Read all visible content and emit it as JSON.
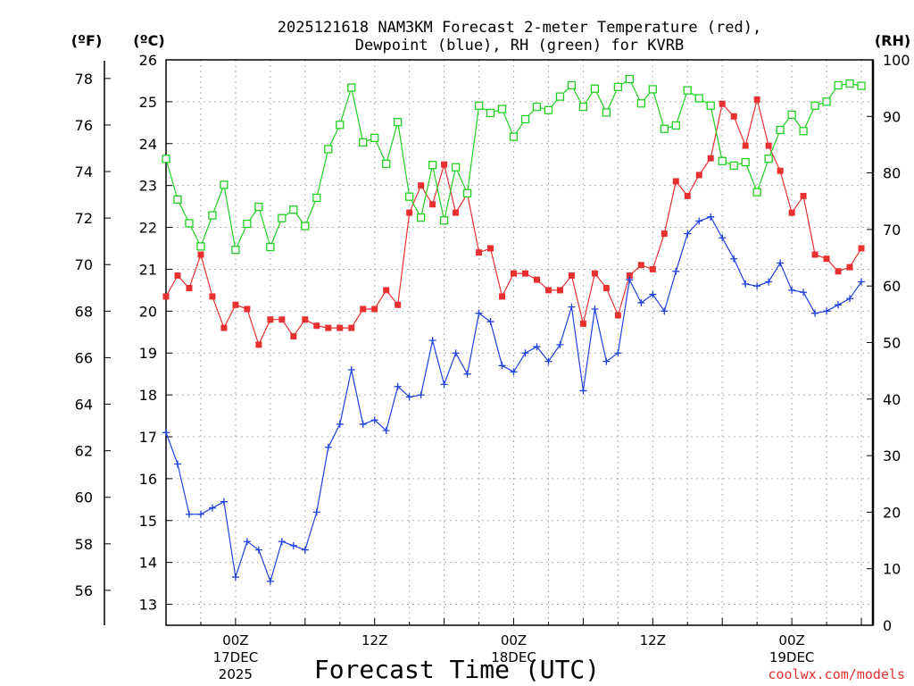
{
  "chart_data": {
    "type": "line",
    "title_line1": "2025121618 NAM3KM Forecast 2-meter Temperature (red),",
    "title_line2": "Dewpoint (blue), RH (green) for KVRB",
    "units": {
      "fahrenheit": "(ºF)",
      "celsius": "(ºC)",
      "rh": "(RH)"
    },
    "xlabel": "Forecast Time (UTC)",
    "credit": "coolwx.com/models",
    "x_hours_range": [
      0,
      61
    ],
    "celsius_axis": {
      "ylim": [
        12.5,
        26
      ],
      "ticks": [
        "13",
        "14",
        "15",
        "16",
        "17",
        "18",
        "19",
        "20",
        "21",
        "22",
        "23",
        "24",
        "25",
        "26"
      ]
    },
    "fahrenheit_axis": {
      "ticks": [
        "56",
        "58",
        "60",
        "62",
        "64",
        "66",
        "68",
        "70",
        "72",
        "74",
        "76",
        "78"
      ]
    },
    "rh_axis": {
      "ylim": [
        0,
        100
      ],
      "ticks": [
        "0",
        "10",
        "20",
        "30",
        "40",
        "50",
        "60",
        "70",
        "80",
        "90",
        "100"
      ]
    },
    "x_ticks": [
      {
        "hour": 6,
        "line1": "00Z",
        "line2": "17DEC",
        "line3": "2025"
      },
      {
        "hour": 18,
        "line1": "12Z"
      },
      {
        "hour": 30,
        "line1": "00Z",
        "line2": "18DEC"
      },
      {
        "hour": 42,
        "line1": "12Z"
      },
      {
        "hour": 54,
        "line1": "00Z",
        "line2": "19DEC"
      }
    ],
    "series": [
      {
        "name": "Temperature",
        "unit": "C",
        "color": "#e83030",
        "marker": "square-filled",
        "values": [
          20.35,
          20.85,
          20.55,
          21.35,
          20.35,
          19.6,
          20.15,
          20.05,
          19.2,
          19.8,
          19.8,
          19.4,
          19.8,
          19.65,
          19.6,
          19.6,
          19.6,
          20.05,
          20.05,
          20.5,
          20.15,
          22.35,
          23.0,
          22.55,
          23.5,
          22.35,
          22.8,
          21.4,
          21.5,
          20.35,
          20.9,
          20.9,
          20.75,
          20.5,
          20.5,
          20.85,
          19.7,
          20.9,
          20.55,
          19.9,
          20.85,
          21.1,
          21.0,
          21.85,
          23.1,
          22.75,
          23.25,
          23.65,
          24.95,
          24.65,
          23.95,
          25.05,
          23.95,
          23.35,
          22.35,
          22.75,
          21.35,
          21.25,
          20.95,
          21.05,
          21.5
        ]
      },
      {
        "name": "Dewpoint",
        "unit": "C",
        "color": "#2040e0",
        "marker": "plus",
        "values": [
          17.1,
          16.35,
          15.15,
          15.15,
          15.3,
          15.45,
          13.65,
          14.5,
          14.3,
          13.55,
          14.5,
          14.4,
          14.3,
          15.2,
          16.75,
          17.3,
          18.6,
          17.3,
          17.4,
          17.15,
          18.2,
          17.95,
          18.0,
          19.3,
          18.25,
          19.0,
          18.5,
          19.95,
          19.75,
          18.7,
          18.55,
          19.0,
          19.15,
          18.8,
          19.2,
          20.1,
          18.1,
          20.05,
          18.8,
          19.0,
          20.75,
          20.2,
          20.4,
          20.0,
          20.95,
          21.85,
          22.15,
          22.25,
          21.75,
          21.25,
          20.65,
          20.6,
          20.7,
          21.15,
          20.5,
          20.45,
          19.95,
          20.0,
          20.15,
          20.3,
          20.7
        ]
      },
      {
        "name": "RH",
        "unit": "%",
        "color": "#20d020",
        "marker": "square-open",
        "values": [
          82.5,
          75.3,
          71.1,
          67.0,
          72.5,
          77.9,
          66.4,
          71.0,
          74.0,
          66.9,
          72.0,
          73.5,
          70.6,
          75.6,
          84.2,
          88.5,
          95.1,
          85.4,
          86.2,
          81.6,
          89.0,
          75.8,
          72.1,
          81.4,
          71.6,
          81.0,
          76.4,
          91.9,
          90.6,
          91.3,
          86.4,
          89.5,
          91.7,
          91.1,
          93.5,
          95.5,
          91.7,
          94.9,
          90.7,
          95.2,
          96.6,
          92.3,
          94.8,
          87.8,
          88.4,
          94.6,
          93.2,
          91.9,
          82.1,
          81.3,
          81.9,
          76.6,
          82.5,
          87.6,
          90.3,
          87.4,
          91.9,
          92.6,
          95.5,
          95.8,
          95.4
        ]
      }
    ]
  }
}
